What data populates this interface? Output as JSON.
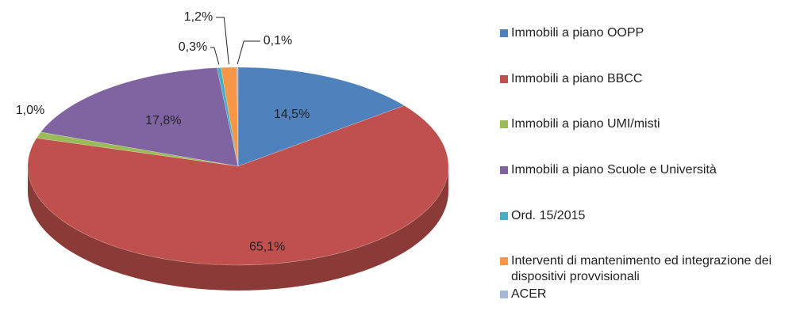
{
  "chart_data": {
    "type": "pie3d",
    "categories": [
      "Immobili a piano OOPP",
      "Immobili a piano BBCC",
      "Immobili a piano UMI/misti",
      "Immobili a piano Scuole e Università",
      "Ord. 15/2015",
      "Interventi di mantenimento ed integrazione dei dispositivi provvisionali",
      "ACER"
    ],
    "values": [
      14.5,
      65.1,
      1.0,
      17.8,
      0.3,
      1.2,
      0.1
    ],
    "value_labels": [
      "14,5%",
      "65,1%",
      "1,0%",
      "17,8%",
      "0,3%",
      "1,2%",
      "0,1%"
    ],
    "colors": [
      "#4f81bd",
      "#c0504d",
      "#9bbb59",
      "#8064a2",
      "#4bacc6",
      "#f79646",
      "#a5b8d9"
    ],
    "legend": "right"
  }
}
